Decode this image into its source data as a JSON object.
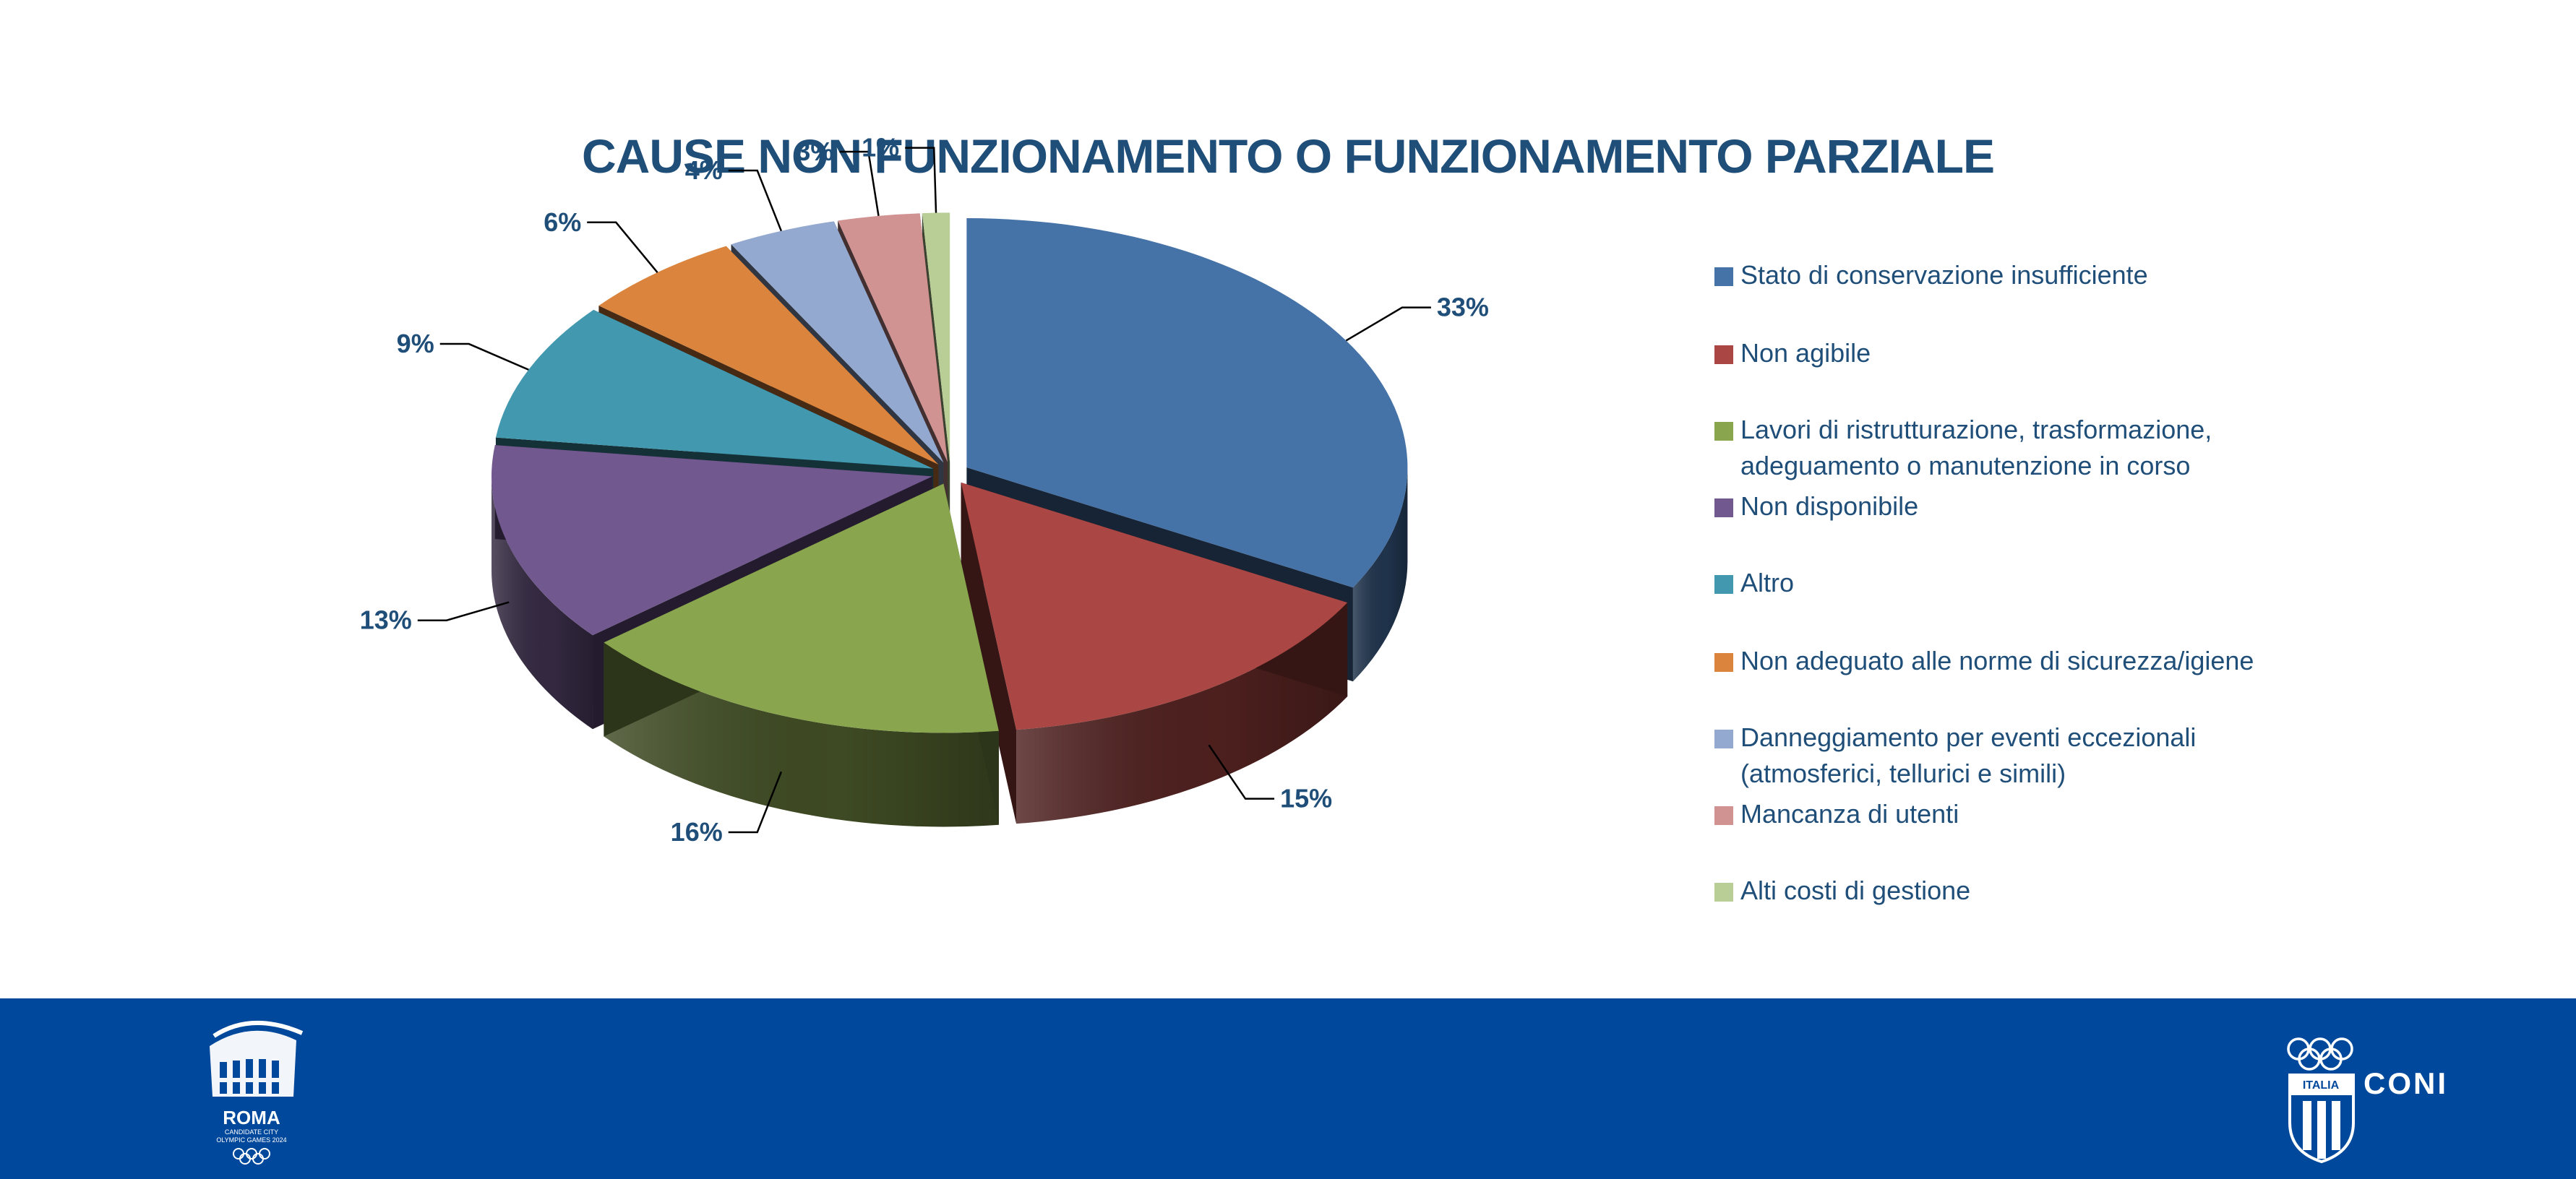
{
  "chart_data": {
    "type": "pie",
    "title": "CAUSE NON FUNZIONAMENTO O FUNZIONAMENTO PARZIALE",
    "legend_position": "right",
    "slices": [
      {
        "label": "Stato di conservazione insufficiente",
        "value": 33,
        "value_label": "33%",
        "color": "#4572A7"
      },
      {
        "label": "Non agibile",
        "value": 15,
        "value_label": "15%",
        "color": "#AA4643"
      },
      {
        "label": "Lavori di ristrutturazione, trasformazione, adeguamento o manutenzione in corso",
        "lines": [
          "Lavori di ristrutturazione, trasformazione,",
          "adeguamento o manutenzione in corso"
        ],
        "value": 16,
        "value_label": "16%",
        "color": "#89A54E"
      },
      {
        "label": "Non disponibile",
        "value": 13,
        "value_label": "13%",
        "color": "#71588F"
      },
      {
        "label": "Altro",
        "value": 9,
        "value_label": "9%",
        "color": "#4198AF"
      },
      {
        "label": "Non adeguato alle norme di sicurezza/igiene",
        "value": 6,
        "value_label": "6%",
        "color": "#DB843D"
      },
      {
        "label": "Danneggiamento per eventi eccezionali (atmosferici, tellurici e simili)",
        "lines": [
          "Danneggiamento per eventi eccezionali",
          "(atmosferici, tellurici e simili)"
        ],
        "value": 4,
        "value_label": "4%",
        "color": "#93A9CF"
      },
      {
        "label": "Mancanza di utenti",
        "value": 3,
        "value_label": "3%",
        "color": "#D19392"
      },
      {
        "label": "Alti costi di gestione",
        "value": 1,
        "value_label": "1%",
        "color": "#B9CD96"
      }
    ]
  },
  "footer": {
    "left_logo": {
      "text": "ROMA",
      "sub_lines": [
        "CANDIDATE CITY",
        "OLYMPIC GAMES 2024"
      ]
    },
    "right_logo": {
      "text": "CONI",
      "badge": "ITALIA"
    },
    "background": "#00489B"
  }
}
